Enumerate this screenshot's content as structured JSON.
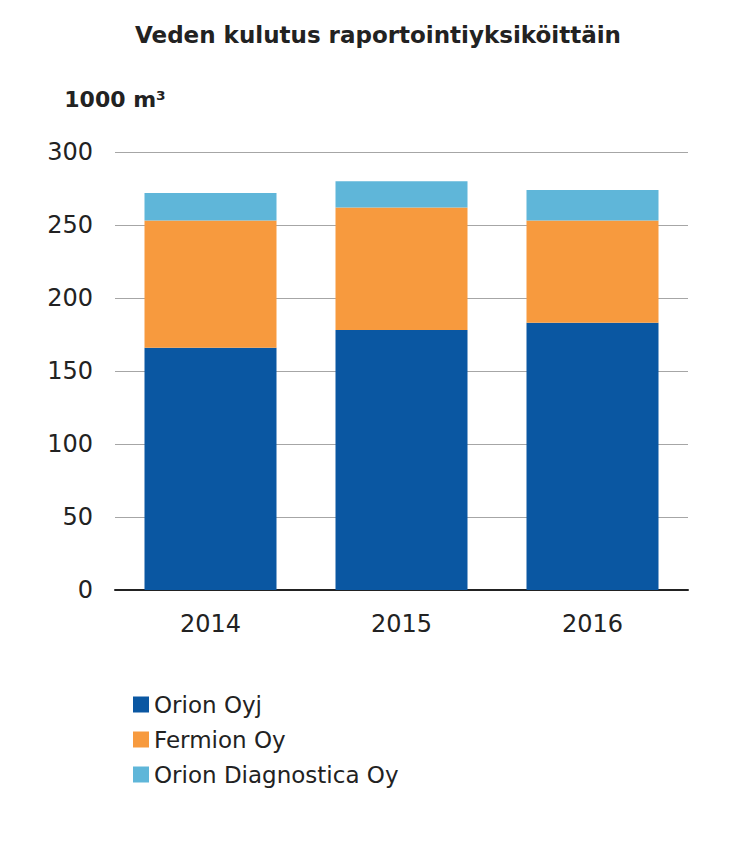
{
  "chart_data": {
    "type": "bar",
    "title": "Veden kulutus raportointiyksiköittäin",
    "y_label": "1000 m³",
    "categories": [
      "2014",
      "2015",
      "2016"
    ],
    "series": [
      {
        "name": "Orion Oyj",
        "color": "#0a57a2",
        "values": [
          166,
          178,
          183
        ]
      },
      {
        "name": "Fermion Oy",
        "color": "#f79a3e",
        "values": [
          87,
          84,
          70
        ]
      },
      {
        "name": "Orion Diagnostica Oy",
        "color": "#5fb6d9",
        "values": [
          19,
          18,
          21
        ]
      }
    ],
    "ylim": [
      0,
      300
    ],
    "yticks": [
      0,
      50,
      100,
      150,
      200,
      250,
      300
    ],
    "grid": true,
    "stacked": true,
    "legend": "bottom-left"
  }
}
